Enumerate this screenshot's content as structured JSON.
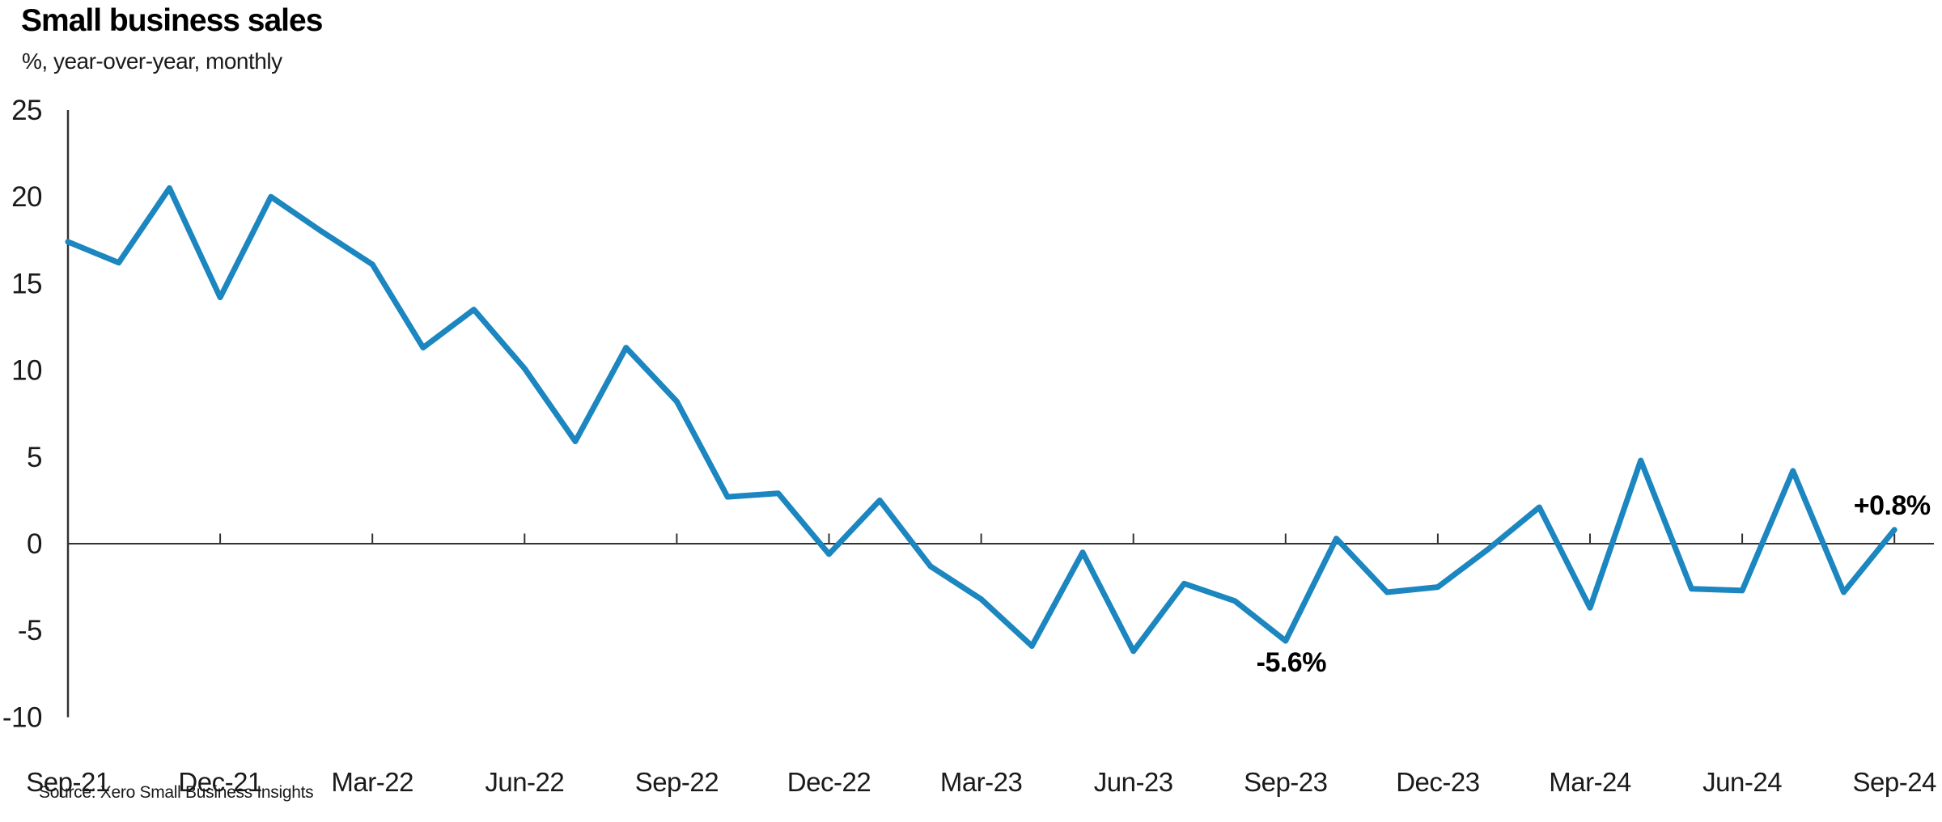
{
  "header": {
    "title": "Small business sales",
    "subtitle": "%, year-over-year, monthly"
  },
  "footer": {
    "source": "Source: Xero Small Business Insights"
  },
  "chart_data": {
    "type": "line",
    "title": "Small business sales",
    "subtitle": "%, year-over-year, monthly",
    "series_name": "Small business sales, % change year-over-year",
    "x": [
      "Sep-21",
      "Oct-21",
      "Nov-21",
      "Dec-21",
      "Jan-22",
      "Feb-22",
      "Mar-22",
      "Apr-22",
      "May-22",
      "Jun-22",
      "Jul-22",
      "Aug-22",
      "Sep-22",
      "Oct-22",
      "Nov-22",
      "Dec-22",
      "Jan-23",
      "Feb-23",
      "Mar-23",
      "Apr-23",
      "May-23",
      "Jun-23",
      "Jul-23",
      "Aug-23",
      "Sep-23",
      "Oct-23",
      "Nov-23",
      "Dec-23",
      "Jan-24",
      "Feb-24",
      "Mar-24",
      "Apr-24",
      "May-24",
      "Jun-24",
      "Jul-24",
      "Aug-24",
      "Sep-24"
    ],
    "values": [
      17.4,
      16.2,
      20.5,
      14.2,
      20.0,
      18.0,
      16.1,
      11.3,
      13.5,
      10.1,
      5.9,
      11.3,
      8.2,
      2.7,
      2.9,
      -0.6,
      2.5,
      -1.3,
      -3.2,
      -5.9,
      -0.5,
      -6.2,
      -2.3,
      -3.3,
      -5.6,
      0.3,
      -2.8,
      -2.5,
      -0.3,
      2.1,
      -3.7,
      4.8,
      -2.6,
      -2.7,
      4.2,
      -2.8,
      0.8
    ],
    "ylim": [
      -10,
      25
    ],
    "y_ticks": [
      25,
      20,
      15,
      10,
      5,
      0,
      -5,
      -10
    ],
    "x_tick_labels": [
      "Sep-21",
      "Dec-21",
      "Mar-22",
      "Jun-22",
      "Sep-22",
      "Dec-22",
      "Mar-23",
      "Jun-23",
      "Sep-23",
      "Dec-23",
      "Mar-24",
      "Jun-24",
      "Sep-24"
    ],
    "annotations": [
      {
        "text": "-5.6%",
        "x": "Sep-23",
        "value": -5.6,
        "placement": "below"
      },
      {
        "text": "+0.8%",
        "x": "Sep-24",
        "value": 0.8,
        "placement": "above"
      }
    ],
    "colors": {
      "line": "#1b86bf",
      "axis": "#333333",
      "text": "#1a1a1a"
    },
    "grid": false,
    "legend": "none",
    "xlabel": "",
    "ylabel": ""
  }
}
